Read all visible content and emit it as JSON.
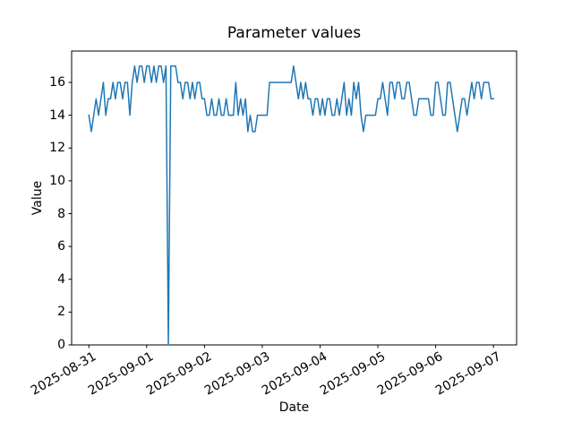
{
  "figure": {
    "background": "#ffffff",
    "spine_color": "#000000",
    "text_color": "#000000"
  },
  "chart_data": {
    "type": "line",
    "title": "Parameter values",
    "xlabel": "Date",
    "ylabel": "Value",
    "grid": false,
    "legend": null,
    "line_color": "#1f77b4",
    "line_width": 1.5,
    "x_start": "2025-08-31 00:00",
    "x_step_hours": 1,
    "x_tick_labels": [
      "2025-08-31",
      "2025-09-01",
      "2025-09-02",
      "2025-09-03",
      "2025-09-04",
      "2025-09-05",
      "2025-09-06",
      "2025-09-07"
    ],
    "x_tick_days": [
      0,
      1,
      2,
      3,
      4,
      5,
      6,
      7
    ],
    "y_ticks": [
      0,
      2,
      4,
      6,
      8,
      10,
      12,
      14,
      16
    ],
    "ylim": [
      0,
      17.9
    ],
    "xlim_days": [
      -0.3,
      7.4
    ],
    "values": [
      14,
      13,
      14,
      15,
      14,
      15,
      16,
      14,
      15,
      15,
      16,
      15,
      16,
      16,
      15,
      16,
      16,
      14,
      16,
      17,
      16,
      17,
      17,
      16,
      17,
      17,
      16,
      17,
      16,
      17,
      17,
      16,
      17,
      0,
      17,
      17,
      17,
      16,
      16,
      15,
      16,
      16,
      15,
      16,
      15,
      16,
      16,
      15,
      15,
      14,
      14,
      15,
      14,
      14,
      15,
      14,
      14,
      15,
      14,
      14,
      14,
      16,
      14,
      15,
      14,
      15,
      13,
      14,
      13,
      13,
      14,
      14,
      14,
      14,
      14,
      16,
      16,
      16,
      16,
      16,
      16,
      16,
      16,
      16,
      16,
      17,
      16,
      15,
      16,
      15,
      16,
      15,
      15,
      14,
      15,
      15,
      14,
      15,
      14,
      15,
      15,
      14,
      14,
      15,
      14,
      15,
      16,
      14,
      15,
      14,
      16,
      15,
      16,
      14,
      13,
      14,
      14,
      14,
      14,
      14,
      15,
      15,
      16,
      15,
      14,
      16,
      16,
      15,
      16,
      16,
      15,
      15,
      16,
      16,
      15,
      14,
      14,
      15,
      15,
      15,
      15,
      15,
      14,
      14,
      16,
      16,
      15,
      14,
      14,
      16,
      16,
      15,
      14,
      13,
      14,
      15,
      15,
      14,
      15,
      16,
      15,
      16,
      16,
      15,
      16,
      16,
      16,
      15,
      15
    ]
  }
}
